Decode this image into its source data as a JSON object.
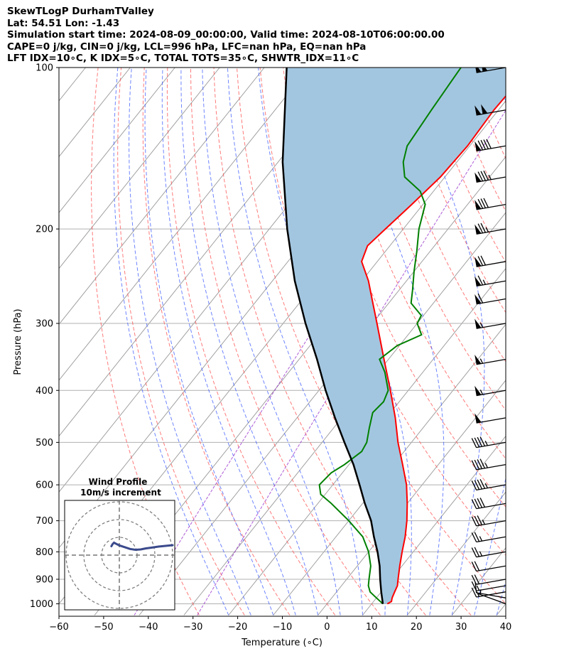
{
  "header": {
    "line1": "SkewTLogP DurhamTValley",
    "line2": "Lat: 54.51   Lon: -1.43",
    "line3": "Simulation start time: 2024-08-09_00:00:00, Valid time: 2024-08-10T06:00:00.00",
    "line4": "CAPE=0 j/kg, CIN=0 j/kg, LCL=996 hPa, LFC=nan hPa, EQ=nan hPa",
    "line5": "LFT IDX=10∘C, K IDX=5∘C, TOTAL TOTS=35∘C, SHWTR_IDX=11∘C"
  },
  "colors": {
    "temperature": "#ff0000",
    "dewpoint": "#008000",
    "parcel": "#000000",
    "cape_fill": "#a3c6e0",
    "dry_adiabat": "#ff4d4d",
    "moist_adiabat": "#3d5cff",
    "mixing_ratio": "#9933cc",
    "isotherm": "#999999",
    "isobar": "#b0b0b0",
    "hodo_line": "#3b4a8c"
  },
  "chart_data": {
    "type": "skewt",
    "xlabel": "Temperature (∘C)",
    "ylabel": "Pressure (hPa)",
    "xlim": [
      -60,
      40
    ],
    "ylim": [
      1050,
      100
    ],
    "y_scale": "log",
    "grid": true,
    "x_ticks": [
      "−60",
      "−50",
      "−40",
      "−30",
      "−20",
      "−10",
      "0",
      "10",
      "20",
      "30",
      "40"
    ],
    "y_ticks": [
      "1000",
      "900",
      "800",
      "700",
      "600",
      "500",
      "400",
      "300",
      "200",
      "100"
    ],
    "temperature_profile": {
      "p": [
        1000,
        990,
        975,
        950,
        925,
        900,
        850,
        800,
        750,
        700,
        650,
        600,
        550,
        500,
        450,
        400,
        350,
        300,
        270,
        250,
        230,
        215,
        200,
        180,
        160,
        140,
        120,
        100
      ],
      "t": [
        13.5,
        14,
        13.5,
        13,
        12.5,
        11.5,
        9.5,
        7.5,
        5.5,
        3,
        0,
        -3.5,
        -8,
        -13,
        -18,
        -24,
        -31,
        -39,
        -44.5,
        -48.5,
        -53.5,
        -55,
        -54,
        -52.5,
        -51,
        -50.5,
        -51,
        -50.5
      ]
    },
    "dewpoint_profile": {
      "p": [
        1000,
        990,
        975,
        950,
        925,
        900,
        850,
        800,
        750,
        700,
        650,
        625,
        600,
        570,
        550,
        520,
        500,
        470,
        440,
        420,
        400,
        370,
        350,
        330,
        315,
        300,
        290,
        275,
        260,
        240,
        220,
        200,
        180,
        170,
        160,
        150,
        140,
        120,
        100
      ],
      "td": [
        12.5,
        11.5,
        10,
        7.5,
        6,
        5,
        3,
        0,
        -4,
        -10,
        -17,
        -21,
        -23,
        -22.5,
        -21,
        -19.5,
        -20,
        -22,
        -24,
        -23.5,
        -24.5,
        -28.5,
        -32,
        -30.5,
        -27,
        -30,
        -30.5,
        -35,
        -37,
        -40,
        -43,
        -46.5,
        -49.5,
        -53,
        -59,
        -62,
        -64,
        -65,
        -66
      ]
    },
    "parcel_profile": {
      "p": [
        1000,
        950,
        900,
        850,
        800,
        750,
        700,
        650,
        600,
        550,
        500,
        450,
        400,
        350,
        300,
        250,
        200,
        150,
        100
      ],
      "t": [
        12.5,
        10,
        7.5,
        5,
        2,
        -1.5,
        -5,
        -9.5,
        -14,
        -19,
        -25,
        -31.5,
        -38.5,
        -46,
        -55,
        -65,
        -76,
        -89,
        -105
      ]
    },
    "wind_barbs": {
      "p": [
        1000,
        975,
        950,
        925,
        900,
        850,
        800,
        750,
        700,
        650,
        600,
        550,
        500,
        450,
        400,
        350,
        300,
        270,
        250,
        230,
        200,
        180,
        160,
        140,
        120,
        100
      ],
      "speed_kt": [
        5,
        10,
        15,
        15,
        20,
        20,
        25,
        25,
        35,
        40,
        45,
        45,
        45,
        50,
        55,
        55,
        55,
        60,
        65,
        70,
        75,
        80,
        85,
        90,
        100,
        100
      ],
      "direction_deg": [
        290,
        280,
        260,
        260,
        260,
        260,
        260,
        260,
        260,
        260,
        260,
        260,
        260,
        260,
        260,
        260,
        260,
        260,
        260,
        260,
        260,
        260,
        260,
        260,
        260,
        260
      ]
    },
    "hodograph": {
      "title": "Wind Profile",
      "subtitle": "10m/s increment",
      "ring_spacing_ms": 10,
      "u": [
        -4.5,
        -3.8,
        -3.0,
        -2.0,
        0,
        3.0,
        6.0,
        9.0,
        12.0,
        15.0,
        18.0,
        22.0,
        26.0,
        30.0
      ],
      "v": [
        5.0,
        6.2,
        7.0,
        6.5,
        5.5,
        4.5,
        3.5,
        3.0,
        3.2,
        3.8,
        4.2,
        4.8,
        5.2,
        5.6
      ]
    }
  }
}
